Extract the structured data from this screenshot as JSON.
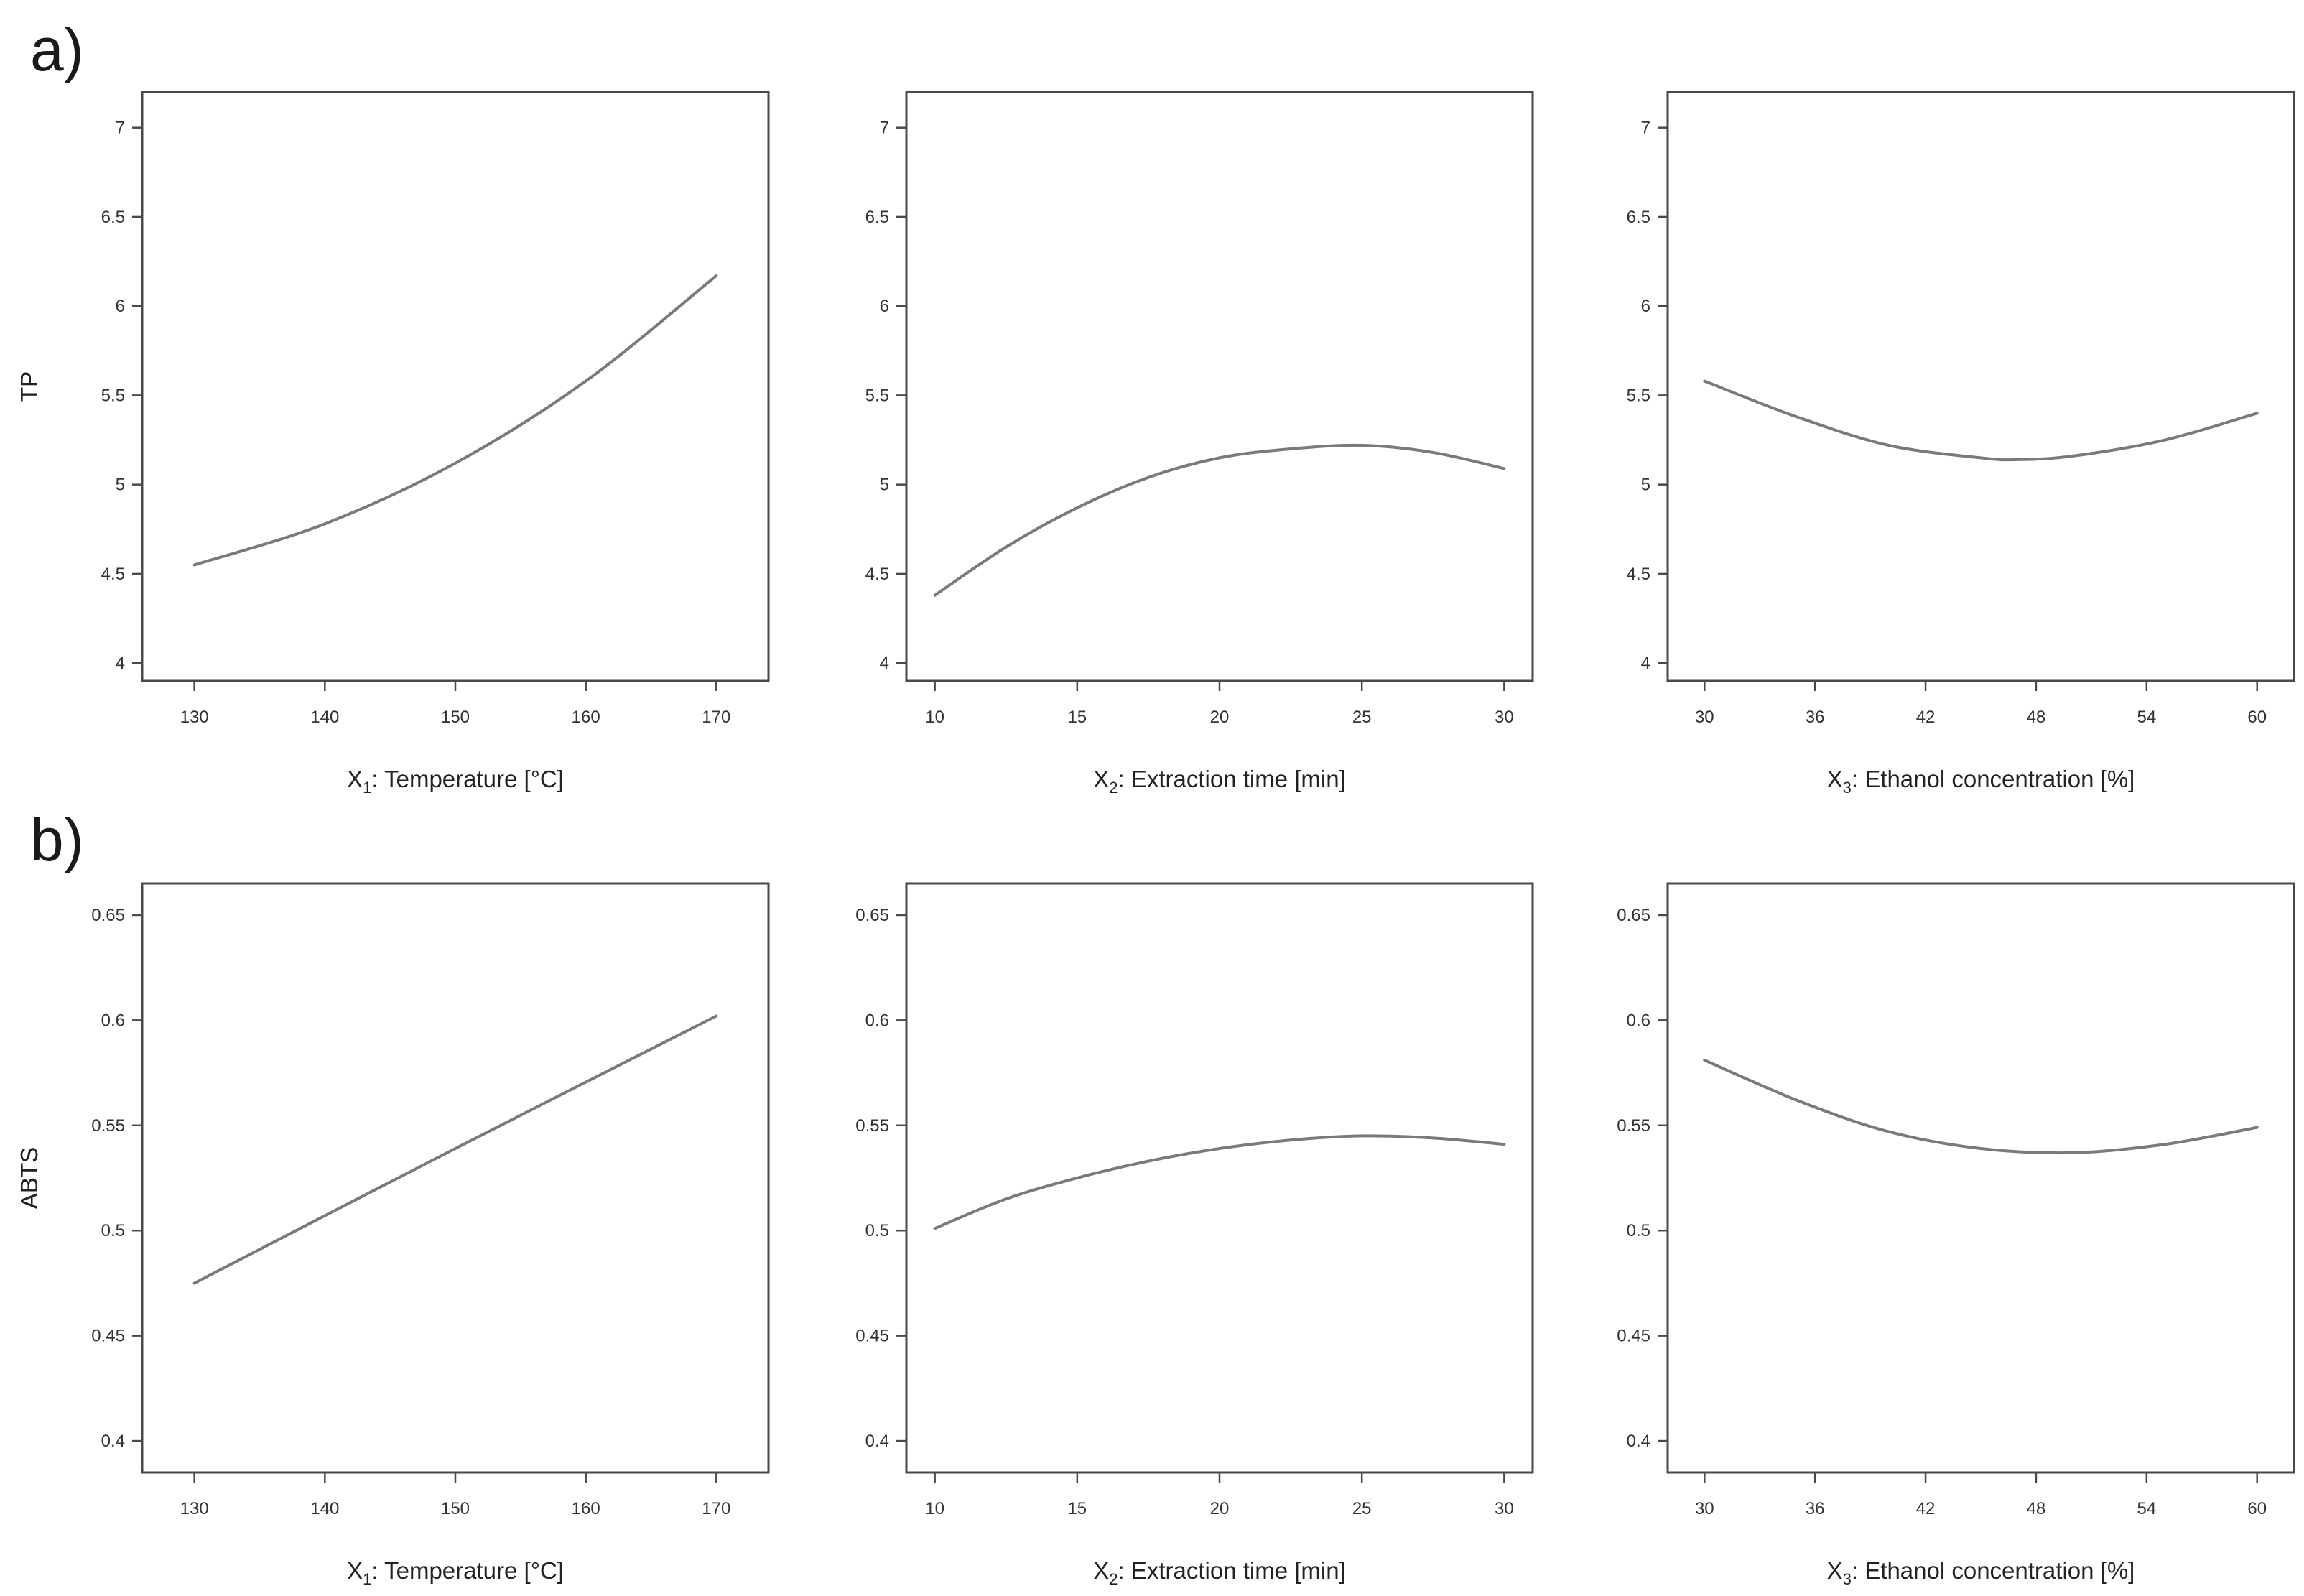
{
  "panel_labels": [
    "a)",
    "b)"
  ],
  "chart_data": [
    {
      "type": "line",
      "row": 0,
      "col": 0,
      "xlabel": "X1: Temperature [°C]",
      "xlabel_main": "X",
      "xlabel_sub": "1",
      "xlabel_rest": ": Temperature [°C]",
      "ylabel": "TP",
      "xlim": [
        126,
        174
      ],
      "ylim": [
        3.9,
        7.2
      ],
      "xticks": [
        130,
        140,
        150,
        160,
        170
      ],
      "xtick_labels": [
        "130",
        "140",
        "150",
        "160",
        "170"
      ],
      "yticks": [
        4,
        4.5,
        5,
        5.5,
        6,
        6.5,
        7
      ],
      "ytick_labels": [
        "4",
        "4.5",
        "5",
        "5.5",
        "6",
        "6.5",
        "7"
      ],
      "x": [
        130,
        140,
        150,
        160,
        170
      ],
      "y": [
        4.55,
        4.78,
        5.12,
        5.58,
        6.17
      ]
    },
    {
      "type": "line",
      "row": 0,
      "col": 1,
      "xlabel": "X2: Extraction time [min]",
      "xlabel_main": "X",
      "xlabel_sub": "2",
      "xlabel_rest": ": Extraction time [min]",
      "ylabel": "TP",
      "xlim": [
        9,
        31
      ],
      "ylim": [
        3.9,
        7.2
      ],
      "xticks": [
        10,
        15,
        20,
        25,
        30
      ],
      "xtick_labels": [
        "10",
        "15",
        "20",
        "25",
        "30"
      ],
      "yticks": [
        4,
        4.5,
        5,
        5.5,
        6,
        6.5,
        7
      ],
      "ytick_labels": [
        "4",
        "4.5",
        "5",
        "5.5",
        "6",
        "6.5",
        "7"
      ],
      "x": [
        10,
        12.5,
        15,
        17.5,
        20,
        22.5,
        25,
        27.5,
        30
      ],
      "y": [
        4.38,
        4.65,
        4.87,
        5.04,
        5.15,
        5.2,
        5.22,
        5.18,
        5.09
      ]
    },
    {
      "type": "line",
      "row": 0,
      "col": 2,
      "xlabel": "X3: Ethanol concentration [%]",
      "xlabel_main": "X",
      "xlabel_sub": "3",
      "xlabel_rest": ": Ethanol concentration [%]",
      "ylabel": "TP",
      "xlim": [
        28,
        62
      ],
      "ylim": [
        3.9,
        7.2
      ],
      "xticks": [
        30,
        36,
        42,
        48,
        54,
        60
      ],
      "xtick_labels": [
        "30",
        "36",
        "42",
        "48",
        "54",
        "60"
      ],
      "yticks": [
        4,
        4.5,
        5,
        5.5,
        6,
        6.5,
        7
      ],
      "ytick_labels": [
        "4",
        "4.5",
        "5",
        "5.5",
        "6",
        "6.5",
        "7"
      ],
      "x": [
        30,
        35,
        40,
        45,
        47,
        50,
        55,
        60
      ],
      "y": [
        5.58,
        5.38,
        5.22,
        5.15,
        5.14,
        5.16,
        5.25,
        5.4
      ]
    },
    {
      "type": "line",
      "row": 1,
      "col": 0,
      "xlabel": "X1: Temperature [°C]",
      "xlabel_main": "X",
      "xlabel_sub": "1",
      "xlabel_rest": ": Temperature [°C]",
      "ylabel": "ABTS",
      "xlim": [
        126,
        174
      ],
      "ylim": [
        0.385,
        0.665
      ],
      "xticks": [
        130,
        140,
        150,
        160,
        170
      ],
      "xtick_labels": [
        "130",
        "140",
        "150",
        "160",
        "170"
      ],
      "yticks": [
        0.4,
        0.45,
        0.5,
        0.55,
        0.6,
        0.65
      ],
      "ytick_labels": [
        "0.4",
        "0.45",
        "0.5",
        "0.55",
        "0.6",
        "0.65"
      ],
      "x": [
        130,
        150,
        170
      ],
      "y": [
        0.475,
        0.539,
        0.602
      ]
    },
    {
      "type": "line",
      "row": 1,
      "col": 1,
      "xlabel": "X2: Extraction time [min]",
      "xlabel_main": "X",
      "xlabel_sub": "2",
      "xlabel_rest": ": Extraction time [min]",
      "ylabel": "ABTS",
      "xlim": [
        9,
        31
      ],
      "ylim": [
        0.385,
        0.665
      ],
      "xticks": [
        10,
        15,
        20,
        25,
        30
      ],
      "xtick_labels": [
        "10",
        "15",
        "20",
        "25",
        "30"
      ],
      "yticks": [
        0.4,
        0.45,
        0.5,
        0.55,
        0.6,
        0.65
      ],
      "ytick_labels": [
        "0.4",
        "0.45",
        "0.5",
        "0.55",
        "0.6",
        "0.65"
      ],
      "x": [
        10,
        12.5,
        15,
        17.5,
        20,
        22.5,
        25,
        27.5,
        30
      ],
      "y": [
        0.501,
        0.515,
        0.525,
        0.533,
        0.539,
        0.543,
        0.545,
        0.544,
        0.541
      ]
    },
    {
      "type": "line",
      "row": 1,
      "col": 2,
      "xlabel": "X3: Ethanol concentration [%]",
      "xlabel_main": "X",
      "xlabel_sub": "3",
      "xlabel_rest": ": Ethanol concentration [%]",
      "ylabel": "ABTS",
      "xlim": [
        28,
        62
      ],
      "ylim": [
        0.385,
        0.665
      ],
      "xticks": [
        30,
        36,
        42,
        48,
        54,
        60
      ],
      "xtick_labels": [
        "30",
        "36",
        "42",
        "48",
        "54",
        "60"
      ],
      "yticks": [
        0.4,
        0.45,
        0.5,
        0.55,
        0.6,
        0.65
      ],
      "ytick_labels": [
        "0.4",
        "0.45",
        "0.5",
        "0.55",
        "0.6",
        "0.65"
      ],
      "x": [
        30,
        35,
        40,
        45,
        50,
        55,
        60
      ],
      "y": [
        0.581,
        0.562,
        0.547,
        0.539,
        0.537,
        0.541,
        0.549
      ]
    }
  ]
}
